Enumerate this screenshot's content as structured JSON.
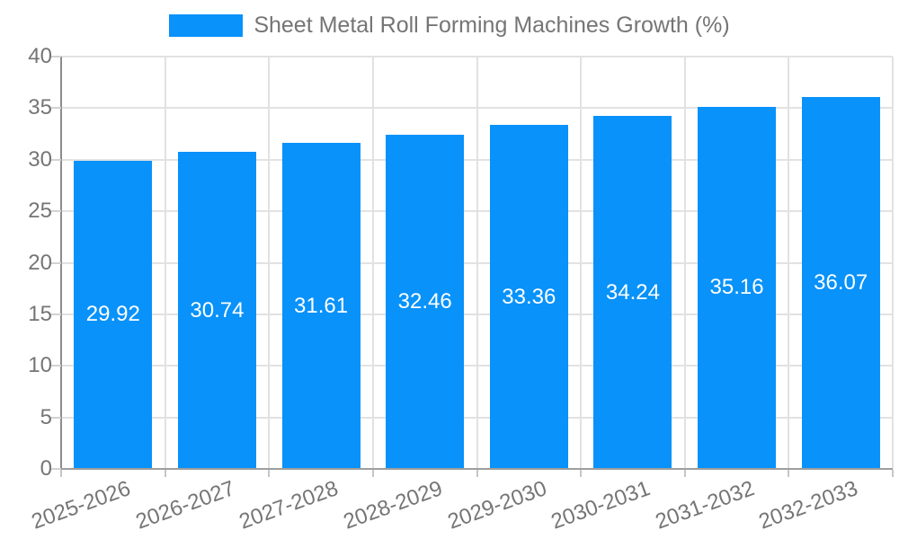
{
  "chart_data": {
    "type": "bar",
    "title": "Sheet Metal Roll Forming Machines Growth (%)",
    "legend": [
      {
        "label": "Sheet Metal Roll Forming Machines Growth (%)",
        "color": "#0892fa"
      }
    ],
    "legend_position": "top",
    "categories": [
      "2025-2026",
      "2026-2027",
      "2027-2028",
      "2028-2029",
      "2029-2030",
      "2030-2031",
      "2031-2032",
      "2032-2033"
    ],
    "values": [
      29.92,
      30.74,
      31.61,
      32.46,
      33.36,
      34.24,
      35.16,
      36.07
    ],
    "xlabel": "",
    "ylabel": "",
    "ylim": [
      0,
      40
    ],
    "yticks": [
      0,
      5,
      10,
      15,
      20,
      25,
      30,
      35,
      40
    ],
    "grid": true,
    "bar_color": "#0892fa",
    "value_label_color": "#ffffff",
    "axis_text_color": "#757575"
  }
}
